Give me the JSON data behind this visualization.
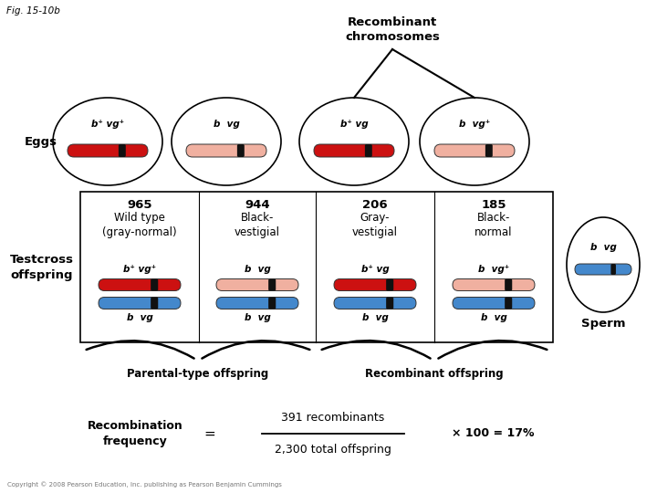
{
  "fig_label": "Fig. 15-10b",
  "title_recombinant": "Recombinant\nchromosomes",
  "background_color": "#ffffff",
  "eggs_label": "Eggs",
  "testcross_label": "Testcross\noffspring",
  "sperm_label": "Sperm",
  "parental_label": "Parental-type offspring",
  "recombinant_label": "Recombinant offspring",
  "egg_labels": [
    "b⁺ vg⁺",
    "b  vg",
    "b⁺ vg",
    "b  vg⁺"
  ],
  "columns": [
    {
      "count": "965",
      "type": "Wild type\n(gray-normal)",
      "chr_top": "red"
    },
    {
      "count": "944",
      "type": "Black-\nvestigial",
      "chr_top": "pink"
    },
    {
      "count": "206",
      "type": "Gray-\nvestigial",
      "chr_top": "red"
    },
    {
      "count": "185",
      "type": "Black-\nnormal",
      "chr_top": "pink"
    }
  ],
  "offspring_top_labels": [
    "b⁺ vg⁺",
    "b  vg",
    "b⁺ vg",
    "b  vg⁺"
  ],
  "offspring_bot_labels": [
    "b  vg",
    "b  vg",
    "b  vg",
    "b  vg"
  ],
  "red_color": "#cc1111",
  "pink_color": "#f0b0a0",
  "blue_color": "#4488cc",
  "recomb_freq_left": "Recombination\nfrequency",
  "recomb_freq_eq": "=",
  "recomb_freq_num": "391 recombinants",
  "recomb_freq_den": "2,300 total offspring",
  "recomb_freq_right": "× 100 = 17%",
  "copyright": "Copyright © 2008 Pearson Education, Inc. publishing as Pearson Benjamin Cummings"
}
